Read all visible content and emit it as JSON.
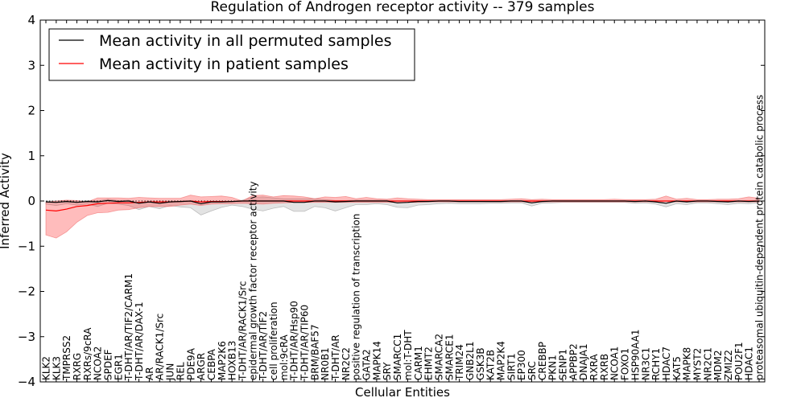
{
  "chart_data": {
    "type": "line",
    "title": "Regulation of Androgen receptor activity -- 379 samples",
    "xlabel": "Cellular Entities",
    "ylabel": "Inferred Activity",
    "ylim": [
      -4,
      4
    ],
    "yticks": [
      4,
      3,
      2,
      1,
      0,
      -1,
      -2,
      -3,
      -4
    ],
    "ytick_labels": [
      "4",
      "3",
      "2",
      "1",
      "0",
      "−1",
      "−2",
      "−3",
      "−4"
    ],
    "grid": false,
    "legend_position": "top-left",
    "categories": [
      "KLK2",
      "KLK3",
      "TMPRSS2",
      "RXRG",
      "RXRs/9cRA",
      "NCOA2",
      "SPDEF",
      "EGR1",
      "T-DHT/AR/TIF2/CARM1",
      "T-DHT/AR/DAX-1",
      "AR",
      "AR/RACK1/Src",
      "JUN",
      "REL",
      "PDE9A",
      "ARGR",
      "CEBPA",
      "MAP2K6",
      "HOXB13",
      "T-DHT/AR/RACK1/Src",
      "epidermal growth factor receptor activity",
      "T-DHT/AR/TIF2",
      "cell proliferation",
      "mol:9cRA",
      "T-DHT/AR/Hsp90",
      "T-DHT/AR/TIP60",
      "BRM/BAF57",
      "NR0B1",
      "T-DHT/AR",
      "NR2C2",
      "positive regulation of transcription",
      "GATA2",
      "MAPK14",
      "SRY",
      "SMARCC1",
      "mol:T-DHT",
      "CARM1",
      "EHMT2",
      "SMARCA2",
      "SMARCE1",
      "TRIM24",
      "GNB2L1",
      "GSK3B",
      "KAT2B",
      "MAP2K4",
      "SIRT1",
      "EP300",
      "SRC",
      "CREBBP",
      "PKN1",
      "SENP1",
      "APPBP2",
      "DNAJA1",
      "RXRA",
      "RXRB",
      "NCOA1",
      "FOXO1",
      "HSP90AA1",
      "NR3C1",
      "RCHY1",
      "HDAC7",
      "KAT5",
      "MAPK8",
      "MYST2",
      "NR2C1",
      "MDM2",
      "ZMIZ2",
      "POU2F1",
      "HDAC1",
      "proteasomal ubiquitin-dependent protein catabolic process"
    ],
    "series": [
      {
        "name": "Mean activity in all permuted samples",
        "color": "#000000",
        "values": [
          -0.02,
          -0.03,
          -0.01,
          -0.03,
          -0.01,
          -0.02,
          0.01,
          -0.01,
          0.0,
          -0.05,
          -0.02,
          -0.05,
          -0.02,
          -0.01,
          0.0,
          -0.06,
          -0.02,
          -0.02,
          -0.01,
          0.0,
          0.0,
          0.0,
          0.0,
          0.0,
          -0.03,
          -0.03,
          0.0,
          0.0,
          -0.02,
          -0.01,
          0.0,
          0.0,
          0.0,
          0.0,
          -0.04,
          -0.03,
          -0.01,
          -0.01,
          0.0,
          0.0,
          -0.01,
          -0.01,
          -0.01,
          -0.01,
          -0.01,
          0.0,
          0.0,
          -0.04,
          -0.01,
          0.0,
          0.0,
          0.0,
          0.0,
          0.0,
          0.0,
          0.0,
          0.0,
          -0.01,
          0.0,
          -0.02,
          -0.05,
          0.0,
          -0.02,
          0.0,
          0.0,
          -0.01,
          -0.02,
          0.0,
          -0.01,
          0.0
        ],
        "band_upper": [
          0.02,
          0.03,
          0.02,
          0.02,
          0.02,
          0.02,
          0.03,
          0.02,
          0.02,
          0.0,
          0.0,
          0.0,
          0.0,
          0.0,
          0.0,
          0.0,
          0.0,
          0.0,
          0.0,
          0.02,
          0.08,
          0.09,
          0.07,
          0.05,
          0.08,
          0.08,
          0.05,
          0.03,
          0.03,
          0.02,
          0.02,
          0.02,
          0.02,
          0.02,
          0.0,
          0.0,
          0.0,
          0.0,
          0.0,
          0.0,
          0.0,
          0.0,
          0.0,
          0.0,
          0.0,
          0.0,
          0.0,
          0.0,
          0.0,
          0.0,
          0.0,
          0.0,
          0.0,
          0.0,
          0.0,
          0.0,
          0.0,
          0.0,
          0.0,
          0.0,
          0.0,
          0.0,
          0.0,
          0.0,
          0.0,
          0.0,
          0.0,
          0.0,
          0.0,
          0.0
        ],
        "band_lower": [
          -0.05,
          -0.07,
          -0.05,
          -0.06,
          -0.06,
          -0.1,
          -0.06,
          -0.06,
          -0.1,
          -0.14,
          -0.1,
          -0.12,
          -0.08,
          -0.12,
          -0.15,
          -0.25,
          -0.2,
          -0.12,
          -0.08,
          -0.12,
          -0.18,
          -0.22,
          -0.16,
          -0.12,
          -0.2,
          -0.2,
          -0.12,
          -0.15,
          -0.2,
          -0.14,
          -0.08,
          -0.08,
          -0.06,
          -0.08,
          -0.1,
          -0.12,
          -0.08,
          -0.07,
          -0.06,
          -0.05,
          -0.05,
          -0.05,
          -0.05,
          -0.04,
          -0.04,
          -0.04,
          -0.04,
          -0.07,
          -0.04,
          -0.04,
          -0.03,
          -0.03,
          -0.03,
          -0.03,
          -0.03,
          -0.03,
          -0.03,
          -0.04,
          -0.04,
          -0.05,
          -0.08,
          -0.06,
          -0.06,
          -0.04,
          -0.04,
          -0.05,
          -0.06,
          -0.05,
          -0.05,
          -0.04
        ]
      },
      {
        "name": "Mean activity in patient samples",
        "color": "#ff0000",
        "values": [
          -0.2,
          -0.22,
          -0.18,
          -0.12,
          -0.1,
          -0.06,
          -0.05,
          -0.04,
          -0.04,
          -0.03,
          -0.02,
          -0.02,
          -0.02,
          -0.01,
          0.0,
          -0.02,
          -0.01,
          -0.01,
          -0.01,
          0.0,
          0.0,
          0.0,
          0.0,
          0.0,
          0.0,
          0.0,
          0.0,
          0.0,
          0.0,
          0.0,
          0.0,
          0.0,
          0.0,
          0.0,
          0.0,
          0.0,
          0.0,
          0.0,
          0.0,
          0.0,
          0.0,
          0.0,
          0.0,
          0.0,
          0.0,
          0.0,
          0.0,
          0.0,
          0.0,
          0.0,
          0.0,
          0.0,
          0.0,
          0.0,
          0.0,
          0.0,
          0.0,
          0.0,
          0.0,
          0.0,
          0.0,
          0.0,
          0.0,
          0.0,
          0.0,
          0.0,
          0.0,
          0.0,
          0.0,
          0.0
        ],
        "band_upper": [
          0.17,
          0.22,
          0.2,
          0.13,
          0.08,
          0.13,
          0.12,
          0.11,
          0.1,
          0.11,
          0.09,
          0.08,
          0.08,
          0.07,
          0.13,
          0.11,
          0.11,
          0.12,
          0.09,
          0.0,
          0.12,
          0.13,
          0.09,
          0.12,
          0.11,
          0.09,
          0.05,
          0.09,
          0.08,
          0.1,
          0.05,
          0.08,
          0.05,
          0.04,
          0.07,
          0.05,
          0.04,
          0.03,
          0.03,
          0.03,
          0.03,
          0.03,
          0.03,
          0.03,
          0.03,
          0.04,
          0.05,
          0.03,
          0.04,
          0.03,
          0.03,
          0.03,
          0.03,
          0.03,
          0.03,
          0.04,
          0.03,
          0.03,
          0.03,
          0.04,
          0.11,
          0.04,
          0.06,
          0.03,
          0.03,
          0.04,
          0.04,
          0.05,
          0.09,
          0.06
        ],
        "band_lower": [
          -0.55,
          -0.6,
          -0.5,
          -0.35,
          -0.22,
          -0.2,
          -0.2,
          -0.16,
          -0.15,
          -0.12,
          -0.1,
          -0.1,
          -0.1,
          -0.08,
          -0.07,
          -0.08,
          -0.06,
          -0.05,
          -0.05,
          -0.05,
          -0.06,
          -0.07,
          -0.05,
          -0.04,
          -0.03,
          -0.03,
          -0.03,
          -0.03,
          -0.03,
          -0.03,
          -0.03,
          -0.03,
          -0.03,
          -0.03,
          -0.03,
          -0.03,
          -0.03,
          -0.02,
          -0.02,
          -0.02,
          -0.02,
          -0.02,
          -0.02,
          -0.02,
          -0.02,
          -0.02,
          -0.02,
          -0.02,
          -0.02,
          -0.02,
          -0.02,
          -0.02,
          -0.02,
          -0.02,
          -0.02,
          -0.02,
          -0.02,
          -0.02,
          -0.02,
          -0.02,
          -0.02,
          -0.02,
          -0.02,
          -0.02,
          -0.02,
          -0.02,
          -0.02,
          -0.02,
          -0.02,
          -0.02
        ]
      }
    ]
  }
}
